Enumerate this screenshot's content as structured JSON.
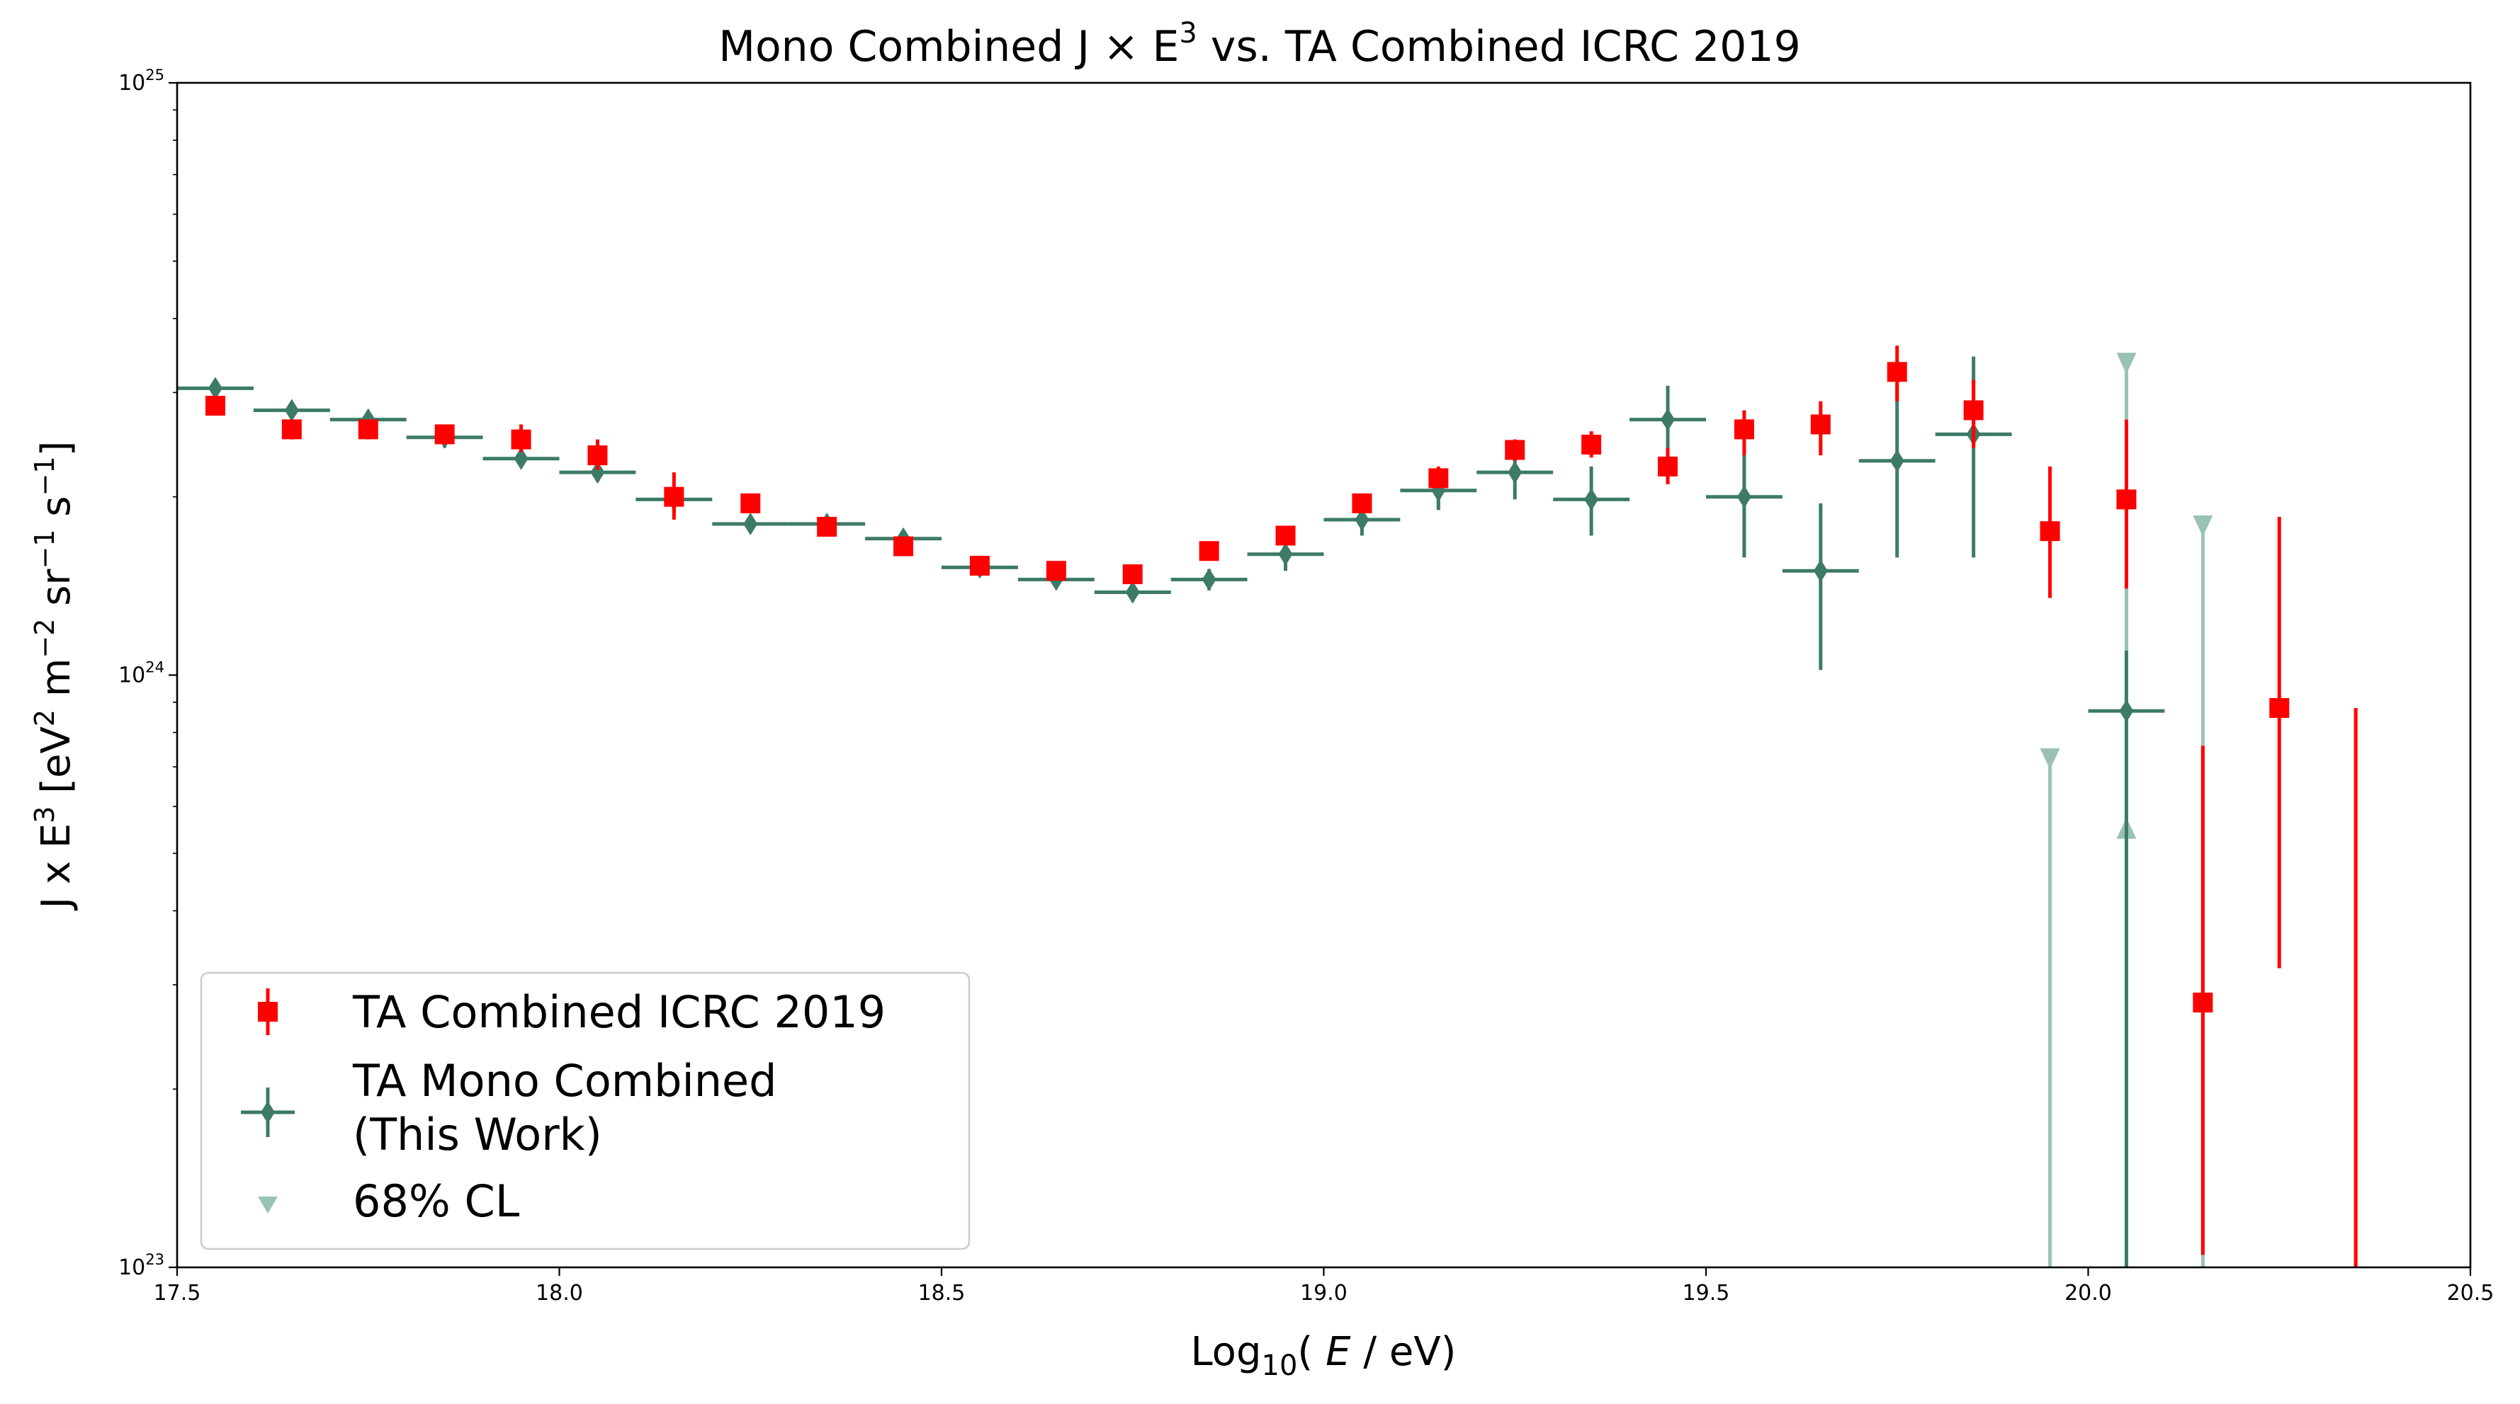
{
  "chart_data": {
    "type": "scatter",
    "title": "Mono Combined J × E",
    "title_sup": "3",
    "title_rest": " vs. TA Combined ICRC 2019",
    "xlabel_pre": "Log",
    "xlabel_sub": "10",
    "xlabel_paren_open": "( ",
    "xlabel_var": "E",
    "xlabel_post": " / eV)",
    "ylabel": {
      "p1": "J x E",
      "s1": "3",
      "p2": " [eV",
      "s2": "2",
      "p3": " m",
      "s3": "−2",
      "p4": " sr",
      "s4": "−1",
      "p5": " s",
      "s5": "−1",
      "p6": "]"
    },
    "xlim": [
      17.5,
      20.5
    ],
    "ylim": [
      1e+23,
      1e+25
    ],
    "y_scale": "log",
    "x_ticks": [
      {
        "v": 17.5,
        "label": "17.5"
      },
      {
        "v": 18.0,
        "label": "18.0"
      },
      {
        "v": 18.5,
        "label": "18.5"
      },
      {
        "v": 19.0,
        "label": "19.0"
      },
      {
        "v": 19.5,
        "label": "19.5"
      },
      {
        "v": 20.0,
        "label": "20.0"
      },
      {
        "v": 20.5,
        "label": "20.5"
      }
    ],
    "y_ticks": [
      {
        "v": 1e+23,
        "base": "10",
        "exp": "23"
      },
      {
        "v": 1e+24,
        "base": "10",
        "exp": "24"
      },
      {
        "v": 1e+25,
        "base": "10",
        "exp": "25"
      }
    ],
    "grid": false,
    "legend_position": "lower-left",
    "colors": {
      "ta_combined": "#ff0000",
      "mono_combined": "#3d7a67",
      "cl68": "#99c2b5"
    },
    "series": [
      {
        "name": "TA Combined ICRC 2019",
        "marker": "square",
        "points": [
          {
            "x": 17.55,
            "y": 2.85e+24,
            "lo": 2.75e+24,
            "hi": 2.95e+24
          },
          {
            "x": 17.65,
            "y": 2.6e+24,
            "lo": 2.5e+24,
            "hi": 2.7e+24
          },
          {
            "x": 17.75,
            "y": 2.6e+24,
            "lo": 2.5e+24,
            "hi": 2.7e+24
          },
          {
            "x": 17.85,
            "y": 2.55e+24,
            "lo": 2.45e+24,
            "hi": 2.65e+24
          },
          {
            "x": 17.95,
            "y": 2.5e+24,
            "lo": 2.38e+24,
            "hi": 2.65e+24
          },
          {
            "x": 18.05,
            "y": 2.35e+24,
            "lo": 2.22e+24,
            "hi": 2.5e+24
          },
          {
            "x": 18.15,
            "y": 2e+24,
            "lo": 1.83e+24,
            "hi": 2.2e+24
          },
          {
            "x": 18.25,
            "y": 1.95e+24,
            "lo": 1.88e+24,
            "hi": 2.02e+24
          },
          {
            "x": 18.35,
            "y": 1.78e+24,
            "lo": 1.73e+24,
            "hi": 1.83e+24
          },
          {
            "x": 18.45,
            "y": 1.65e+24,
            "lo": 1.6e+24,
            "hi": 1.7e+24
          },
          {
            "x": 18.55,
            "y": 1.53e+24,
            "lo": 1.49e+24,
            "hi": 1.57e+24
          },
          {
            "x": 18.65,
            "y": 1.5e+24,
            "lo": 1.46e+24,
            "hi": 1.54e+24
          },
          {
            "x": 18.75,
            "y": 1.48e+24,
            "lo": 1.44e+24,
            "hi": 1.52e+24
          },
          {
            "x": 18.85,
            "y": 1.62e+24,
            "lo": 1.58e+24,
            "hi": 1.66e+24
          },
          {
            "x": 18.95,
            "y": 1.72e+24,
            "lo": 1.67e+24,
            "hi": 1.77e+24
          },
          {
            "x": 19.05,
            "y": 1.95e+24,
            "lo": 1.88e+24,
            "hi": 2.02e+24
          },
          {
            "x": 19.15,
            "y": 2.15e+24,
            "lo": 2.07e+24,
            "hi": 2.25e+24
          },
          {
            "x": 19.25,
            "y": 2.4e+24,
            "lo": 2.3e+24,
            "hi": 2.5e+24
          },
          {
            "x": 19.35,
            "y": 2.45e+24,
            "lo": 2.33e+24,
            "hi": 2.58e+24
          },
          {
            "x": 19.45,
            "y": 2.25e+24,
            "lo": 2.1e+24,
            "hi": 2.42e+24
          },
          {
            "x": 19.55,
            "y": 2.6e+24,
            "lo": 2.35e+24,
            "hi": 2.8e+24
          },
          {
            "x": 19.65,
            "y": 2.65e+24,
            "lo": 2.35e+24,
            "hi": 2.9e+24
          },
          {
            "x": 19.75,
            "y": 3.25e+24,
            "lo": 2.9e+24,
            "hi": 3.6e+24
          },
          {
            "x": 19.85,
            "y": 2.8e+24,
            "lo": 2.42e+24,
            "hi": 3.15e+24
          },
          {
            "x": 19.95,
            "y": 1.75e+24,
            "lo": 1.35e+24,
            "hi": 2.25e+24
          },
          {
            "x": 20.05,
            "y": 1.98e+24,
            "lo": 1.4e+24,
            "hi": 2.7e+24
          },
          {
            "x": 20.15,
            "y": 2.8e+23,
            "lo": 1.05e+23,
            "hi": 7.6e+23
          },
          {
            "x": 20.25,
            "y": 8.8e+23,
            "lo": 3.2e+23,
            "hi": 1.85e+24
          },
          {
            "x": 20.35,
            "y": null,
            "lo": 1e+23,
            "hi": 8.8e+23
          }
        ]
      },
      {
        "name": "TA Mono Combined",
        "name_line2": "(This Work)",
        "marker": "diamond",
        "points": [
          {
            "x": 17.55,
            "y": 3.05e+24,
            "lo": 2.95e+24,
            "hi": 3.15e+24
          },
          {
            "x": 17.65,
            "y": 2.8e+24,
            "lo": 2.72e+24,
            "hi": 2.88e+24
          },
          {
            "x": 17.75,
            "y": 2.7e+24,
            "lo": 2.62e+24,
            "hi": 2.78e+24
          },
          {
            "x": 17.85,
            "y": 2.52e+24,
            "lo": 2.42e+24,
            "hi": 2.62e+24
          },
          {
            "x": 17.95,
            "y": 2.32e+24,
            "lo": 2.24e+24,
            "hi": 2.4e+24
          },
          {
            "x": 18.05,
            "y": 2.2e+24,
            "lo": 2.12e+24,
            "hi": 2.28e+24
          },
          {
            "x": 18.15,
            "y": 1.98e+24,
            "lo": 1.88e+24,
            "hi": 2.08e+24
          },
          {
            "x": 18.25,
            "y": 1.8e+24,
            "lo": 1.74e+24,
            "hi": 1.86e+24
          },
          {
            "x": 18.35,
            "y": 1.8e+24,
            "lo": 1.75e+24,
            "hi": 1.85e+24
          },
          {
            "x": 18.45,
            "y": 1.7e+24,
            "lo": 1.65e+24,
            "hi": 1.75e+24
          },
          {
            "x": 18.55,
            "y": 1.52e+24,
            "lo": 1.48e+24,
            "hi": 1.56e+24
          },
          {
            "x": 18.65,
            "y": 1.45e+24,
            "lo": 1.41e+24,
            "hi": 1.49e+24
          },
          {
            "x": 18.75,
            "y": 1.38e+24,
            "lo": 1.33e+24,
            "hi": 1.43e+24
          },
          {
            "x": 18.85,
            "y": 1.45e+24,
            "lo": 1.39e+24,
            "hi": 1.51e+24
          },
          {
            "x": 18.95,
            "y": 1.6e+24,
            "lo": 1.5e+24,
            "hi": 1.7e+24
          },
          {
            "x": 19.05,
            "y": 1.83e+24,
            "lo": 1.72e+24,
            "hi": 1.94e+24
          },
          {
            "x": 19.15,
            "y": 2.05e+24,
            "lo": 1.9e+24,
            "hi": 2.2e+24
          },
          {
            "x": 19.25,
            "y": 2.2e+24,
            "lo": 1.98e+24,
            "hi": 2.42e+24
          },
          {
            "x": 19.35,
            "y": 1.98e+24,
            "lo": 1.72e+24,
            "hi": 2.25e+24
          },
          {
            "x": 19.45,
            "y": 2.7e+24,
            "lo": 2.38e+24,
            "hi": 3.08e+24
          },
          {
            "x": 19.55,
            "y": 2e+24,
            "lo": 1.58e+24,
            "hi": 2.45e+24
          },
          {
            "x": 19.65,
            "y": 1.5e+24,
            "lo": 1.02e+24,
            "hi": 1.95e+24
          },
          {
            "x": 19.75,
            "y": 2.3e+24,
            "lo": 1.58e+24,
            "hi": 3.1e+24
          },
          {
            "x": 19.85,
            "y": 2.55e+24,
            "lo": 1.58e+24,
            "hi": 3.45e+24
          },
          {
            "x": 20.05,
            "y": 8.7e+23,
            "lo": 1e+23,
            "hi": 1.1e+24
          }
        ]
      },
      {
        "name": "68% CL",
        "marker": "triangle-down",
        "points": [
          {
            "x": 19.95,
            "y": 7.2e+23,
            "lo": 1e+23,
            "hi": 7.2e+23
          },
          {
            "x": 20.05,
            "y": 3.35e+24,
            "lo": 5.5e+23,
            "hi": 3.35e+24
          },
          {
            "x": 20.15,
            "y": 1.78e+24,
            "lo": 1e+23,
            "hi": 1.78e+24
          }
        ]
      }
    ]
  }
}
